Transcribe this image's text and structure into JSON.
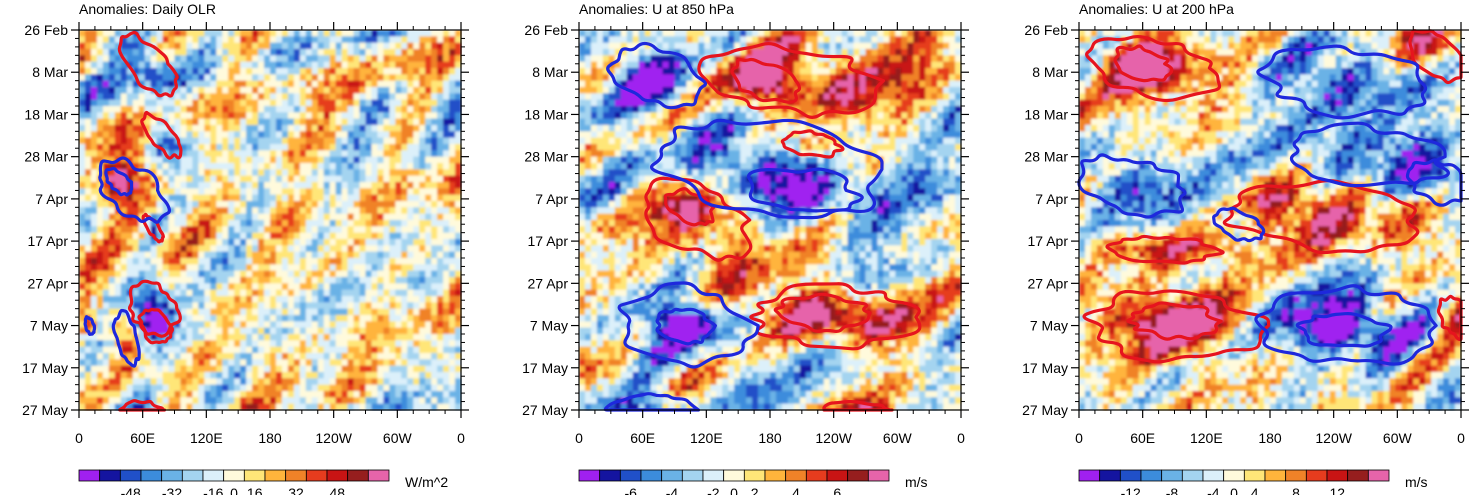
{
  "chart_data": [
    {
      "type": "heatmap",
      "title": "Anomalies: Daily OLR",
      "x_tick_labels": [
        "0",
        "60E",
        "120E",
        "180",
        "120W",
        "60W",
        "0"
      ],
      "x_ticks_deg": [
        0,
        60,
        120,
        180,
        240,
        300,
        360
      ],
      "y_tick_labels": [
        "26 Feb",
        "8 Mar",
        "18 Mar",
        "28 Mar",
        "7 Apr",
        "17 Apr",
        "27 Apr",
        "7 May",
        "17 May",
        "27 May"
      ],
      "y_ticks_day": [
        0,
        10,
        20,
        30,
        40,
        50,
        60,
        70,
        80,
        90
      ],
      "x_range": [
        0,
        360
      ],
      "y_range": [
        0,
        90
      ],
      "colorbar_labels": [
        "-48",
        "-32",
        "-16",
        "0",
        "16",
        "32",
        "48"
      ],
      "colorbar_units": "W/m^2",
      "field_amplitude": 50,
      "sign": -1,
      "contours_red": [
        {
          "center": [
            65,
            8
          ],
          "size": [
            22,
            7
          ]
        },
        {
          "center": [
            78,
            25
          ],
          "size": [
            14,
            5
          ]
        },
        {
          "center": [
            70,
            47
          ],
          "size": [
            6,
            3
          ]
        },
        {
          "center": [
            70,
            66
          ],
          "size": [
            22,
            6
          ]
        },
        {
          "center": [
            72,
            70
          ],
          "size": [
            14,
            4
          ]
        },
        {
          "center": [
            60,
            91
          ],
          "size": [
            20,
            3
          ]
        }
      ],
      "contours_blue": [
        {
          "center": [
            50,
            38
          ],
          "size": [
            28,
            7
          ]
        },
        {
          "center": [
            38,
            36
          ],
          "size": [
            10,
            3
          ]
        },
        {
          "center": [
            45,
            73
          ],
          "size": [
            10,
            6
          ]
        },
        {
          "center": [
            10,
            70
          ],
          "size": [
            4,
            2
          ]
        }
      ]
    },
    {
      "type": "heatmap",
      "title": "Anomalies: U at 850 hPa",
      "x_tick_labels": [
        "0",
        "60E",
        "120E",
        "180",
        "120W",
        "60W",
        "0"
      ],
      "x_ticks_deg": [
        0,
        60,
        120,
        180,
        240,
        300,
        360
      ],
      "y_tick_labels": [
        "26 Feb",
        "8 Mar",
        "18 Mar",
        "28 Mar",
        "7 Apr",
        "17 Apr",
        "27 Apr",
        "7 May",
        "17 May",
        "27 May"
      ],
      "y_ticks_day": [
        0,
        10,
        20,
        30,
        40,
        50,
        60,
        70,
        80,
        90
      ],
      "x_range": [
        0,
        360
      ],
      "y_range": [
        0,
        90
      ],
      "colorbar_labels": [
        "-6",
        "-4",
        "-2",
        "0",
        "2",
        "4",
        "6"
      ],
      "colorbar_units": "m/s",
      "field_amplitude": 6.5,
      "sign": 1,
      "contours_red": [
        {
          "center": [
            200,
            12
          ],
          "size": [
            80,
            8
          ]
        },
        {
          "center": [
            175,
            12
          ],
          "size": [
            30,
            5
          ]
        },
        {
          "center": [
            220,
            27
          ],
          "size": [
            25,
            3
          ]
        },
        {
          "center": [
            110,
            45
          ],
          "size": [
            45,
            9
          ]
        },
        {
          "center": [
            105,
            42
          ],
          "size": [
            20,
            4
          ]
        },
        {
          "center": [
            240,
            68
          ],
          "size": [
            75,
            7
          ]
        },
        {
          "center": [
            230,
            67
          ],
          "size": [
            45,
            4
          ]
        },
        {
          "center": [
            260,
            91
          ],
          "size": [
            30,
            3
          ]
        }
      ],
      "contours_blue": [
        {
          "center": [
            75,
            11
          ],
          "size": [
            40,
            7
          ]
        },
        {
          "center": [
            180,
            33
          ],
          "size": [
            100,
            12
          ]
        },
        {
          "center": [
            210,
            38
          ],
          "size": [
            50,
            5
          ]
        },
        {
          "center": [
            100,
            70
          ],
          "size": [
            60,
            9
          ]
        },
        {
          "center": [
            100,
            70
          ],
          "size": [
            25,
            4
          ]
        },
        {
          "center": [
            70,
            90
          ],
          "size": [
            40,
            4
          ]
        }
      ]
    },
    {
      "type": "heatmap",
      "title": "Anomalies: U at 200 hPa",
      "x_tick_labels": [
        "0",
        "60E",
        "120E",
        "180",
        "120W",
        "60W",
        "0"
      ],
      "x_ticks_deg": [
        0,
        60,
        120,
        180,
        240,
        300,
        360
      ],
      "y_tick_labels": [
        "26 Feb",
        "8 Mar",
        "18 Mar",
        "28 Mar",
        "7 Apr",
        "17 Apr",
        "27 Apr",
        "7 May",
        "17 May",
        "27 May"
      ],
      "y_ticks_day": [
        0,
        10,
        20,
        30,
        40,
        50,
        60,
        70,
        80,
        90
      ],
      "x_range": [
        0,
        360
      ],
      "y_range": [
        0,
        90
      ],
      "colorbar_labels": [
        "-12",
        "-8",
        "-4",
        "0",
        "4",
        "8",
        "12"
      ],
      "colorbar_units": "m/s",
      "field_amplitude": 14,
      "sign": 1,
      "contours_red": [
        {
          "center": [
            70,
            9
          ],
          "size": [
            60,
            7
          ]
        },
        {
          "center": [
            60,
            8
          ],
          "size": [
            25,
            4
          ]
        },
        {
          "center": [
            340,
            6
          ],
          "size": [
            25,
            6
          ]
        },
        {
          "center": [
            230,
            44
          ],
          "size": [
            90,
            8
          ]
        },
        {
          "center": [
            80,
            52
          ],
          "size": [
            50,
            3
          ]
        },
        {
          "center": [
            90,
            70
          ],
          "size": [
            80,
            8
          ]
        },
        {
          "center": [
            90,
            69
          ],
          "size": [
            40,
            4
          ]
        },
        {
          "center": [
            355,
            68
          ],
          "size": [
            15,
            5
          ]
        }
      ],
      "contours_blue": [
        {
          "center": [
            250,
            12
          ],
          "size": [
            75,
            8
          ]
        },
        {
          "center": [
            270,
            30
          ],
          "size": [
            70,
            7
          ]
        },
        {
          "center": [
            50,
            37
          ],
          "size": [
            50,
            7
          ]
        },
        {
          "center": [
            340,
            36
          ],
          "size": [
            30,
            5
          ]
        },
        {
          "center": [
            250,
            70
          ],
          "size": [
            80,
            9
          ]
        },
        {
          "center": [
            250,
            71
          ],
          "size": [
            40,
            4
          ]
        },
        {
          "center": [
            150,
            46
          ],
          "size": [
            20,
            4
          ]
        }
      ]
    }
  ],
  "colorbar_colors": [
    "#a020f0",
    "#1414a0",
    "#2050c8",
    "#3c8cdc",
    "#6ab2e6",
    "#a4d4f0",
    "#dcf0fa",
    "#fffadc",
    "#ffe678",
    "#ffb43c",
    "#f08228",
    "#e63c1e",
    "#c81414",
    "#961e1e",
    "#e664aa"
  ]
}
